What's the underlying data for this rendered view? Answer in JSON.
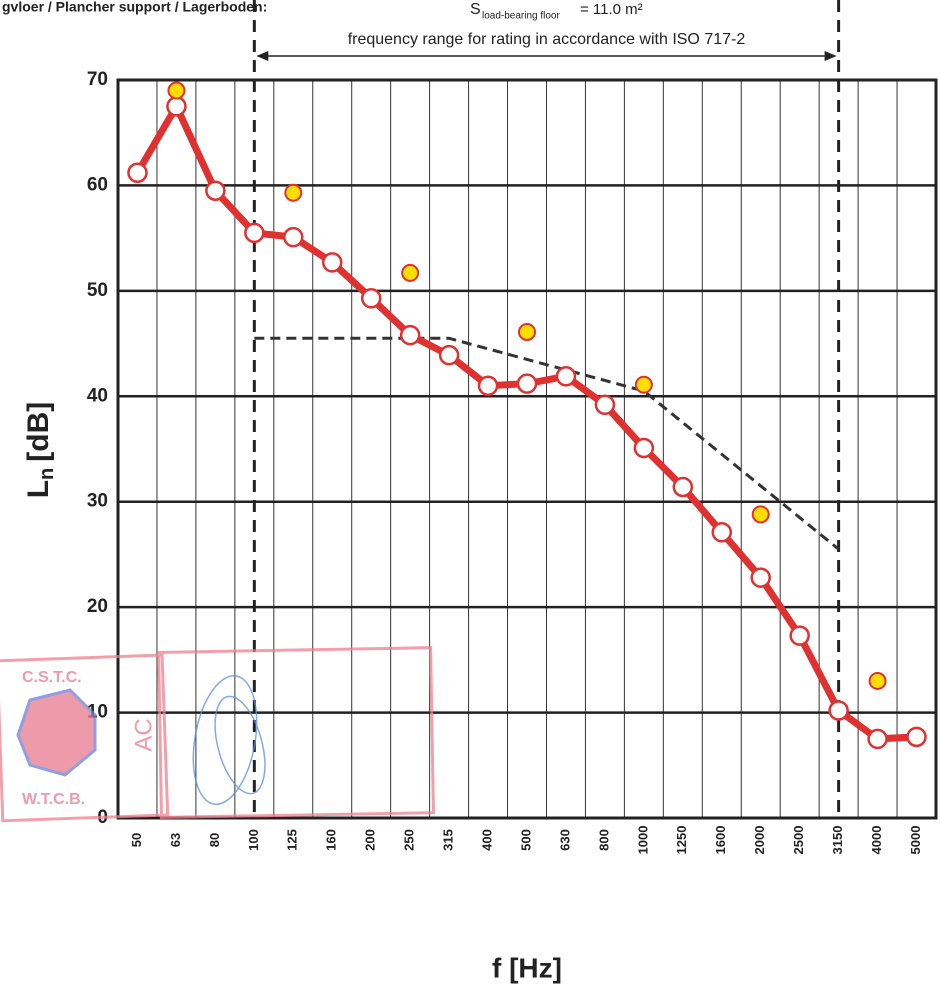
{
  "header": {
    "left": "gvloer / Plancher support / Lagerboden:",
    "symbol": "S",
    "symbol_sub": "load-bearing floor",
    "value": "= 11.0 m²"
  },
  "stamp": {
    "top": "C.S.T.C.",
    "bottom": "W.T.C.B.",
    "side": "AC"
  },
  "chart_data": {
    "type": "line",
    "annotation": "frequency range for rating in accordance with ISO 717-2",
    "y_label": "L",
    "y_label_sub": "n",
    "y_label_unit": "[dB]",
    "x_label": "f [Hz]",
    "categories": [
      "50",
      "63",
      "80",
      "100",
      "125",
      "160",
      "200",
      "250",
      "315",
      "400",
      "500",
      "630",
      "800",
      "1000",
      "1250",
      "1600",
      "2000",
      "2500",
      "3150",
      "4000",
      "5000"
    ],
    "ylim": [
      0,
      70
    ],
    "yticks": [
      0,
      10,
      20,
      30,
      40,
      50,
      60,
      70
    ],
    "grid": true,
    "series": [
      {
        "color": "#e03131",
        "marker_fill": "#ffffff",
        "line": true,
        "dash": false,
        "values": [
          61.2,
          67.5,
          59.5,
          55.5,
          55.1,
          52.7,
          49.3,
          45.8,
          43.9,
          41.0,
          41.2,
          41.9,
          39.2,
          35.1,
          31.4,
          27.1,
          22.8,
          17.3,
          10.2,
          7.5,
          7.7
        ]
      },
      {
        "color": "#e03131",
        "marker_fill": "#ffdd00",
        "line": false,
        "dash": false,
        "values": [
          null,
          69.0,
          null,
          null,
          59.3,
          null,
          null,
          51.7,
          null,
          null,
          46.1,
          null,
          null,
          41.1,
          null,
          null,
          28.8,
          null,
          null,
          13.0,
          null
        ]
      },
      {
        "color": "#333333",
        "marker_fill": null,
        "line": true,
        "dash": true,
        "range_bounds": true,
        "values": [
          null,
          null,
          null,
          45.5,
          45.5,
          45.5,
          45.5,
          45.5,
          45.5,
          44.5,
          43.5,
          42.5,
          41.5,
          40.5,
          37.5,
          34.5,
          31.5,
          28.5,
          25.5,
          null,
          null
        ]
      }
    ]
  }
}
